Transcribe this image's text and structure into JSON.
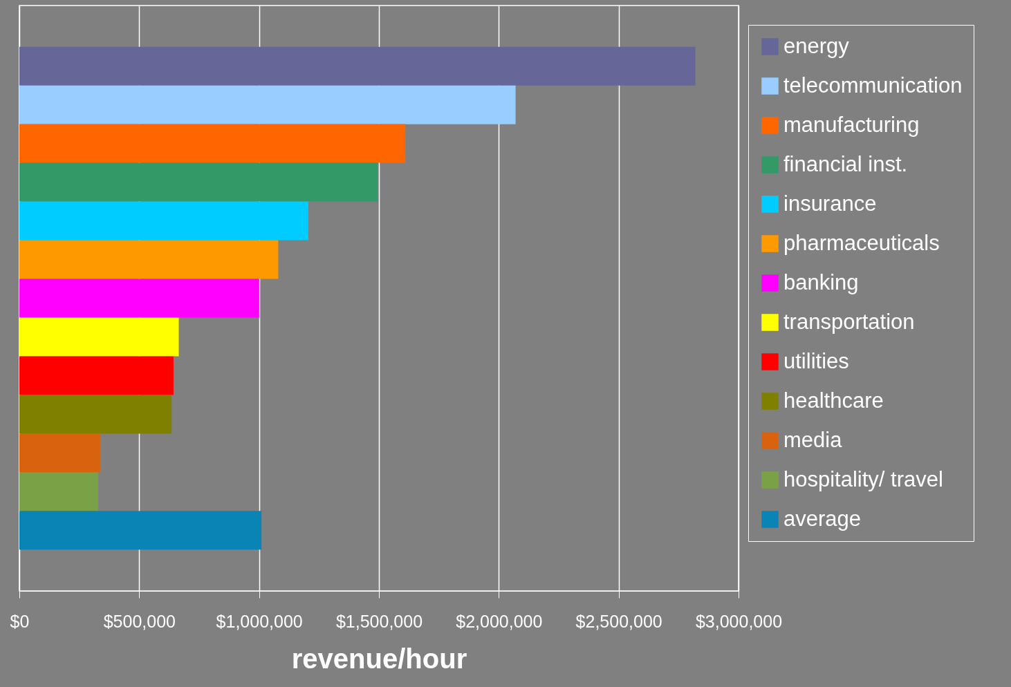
{
  "chart_data": {
    "type": "bar",
    "orientation": "horizontal",
    "xlabel": "revenue/hour",
    "categories": [
      null
    ],
    "series": [
      {
        "name": "energy",
        "color": "#666699",
        "values": [
          2820000
        ]
      },
      {
        "name": "telecommunication",
        "color": "#99ccff",
        "values": [
          2070000
        ]
      },
      {
        "name": "manufacturing",
        "color": "#ff6600",
        "values": [
          1610000
        ]
      },
      {
        "name": "financial inst.",
        "color": "#339966",
        "values": [
          1495000
        ]
      },
      {
        "name": "insurance",
        "color": "#00ccff",
        "values": [
          1205000
        ]
      },
      {
        "name": "pharmaceuticals",
        "color": "#ff9900",
        "values": [
          1080000
        ]
      },
      {
        "name": "banking",
        "color": "#ff00ff",
        "values": [
          1000000
        ]
      },
      {
        "name": "transportation",
        "color": "#ffff00",
        "values": [
          665000
        ]
      },
      {
        "name": "utilities",
        "color": "#ff0000",
        "values": [
          643000
        ]
      },
      {
        "name": "healthcare",
        "color": "#808000",
        "values": [
          635000
        ]
      },
      {
        "name": "media",
        "color": "#d9620f",
        "values": [
          337000
        ]
      },
      {
        "name": "hospitality/ travel",
        "color": "#7ba146",
        "values": [
          329000
        ]
      },
      {
        "name": "average",
        "color": "#0a83b5",
        "values": [
          1010000
        ]
      }
    ],
    "xlim": [
      0,
      3000000
    ],
    "xticks": [
      {
        "value": 0,
        "label": "$0"
      },
      {
        "value": 500000,
        "label": "$500,000"
      },
      {
        "value": 1000000,
        "label": "$1,000,000"
      },
      {
        "value": 1500000,
        "label": "$1,500,000"
      },
      {
        "value": 2000000,
        "label": "$2,000,000"
      },
      {
        "value": 2500000,
        "label": "$2,500,000"
      },
      {
        "value": 3000000,
        "label": "$3,000,000"
      }
    ],
    "grid": "x",
    "legend": "right"
  }
}
